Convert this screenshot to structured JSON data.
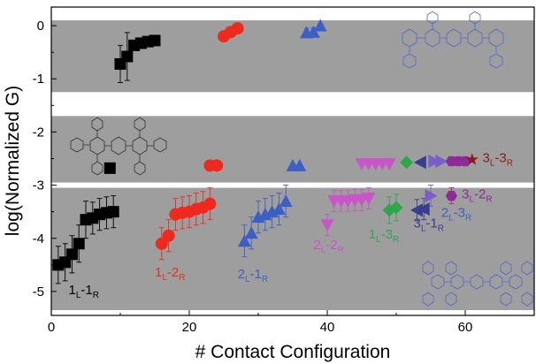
{
  "chart_data": {
    "type": "scatter",
    "xlabel": "# Contact Configuration",
    "ylabel": "log(Normalized G)",
    "xlim": [
      0,
      70
    ],
    "ylim": [
      -5.45,
      0.35
    ],
    "xticks": [
      "0",
      "20",
      "40",
      "60"
    ],
    "xtick_values": [
      0,
      20,
      40,
      60
    ],
    "yticks": [
      "0",
      "-1",
      "-2",
      "-3",
      "-4",
      "-5"
    ],
    "ytick_values": [
      0,
      -1,
      -2,
      -3,
      -4,
      -5
    ],
    "grid": false,
    "bands": [
      {
        "from": -1.25,
        "to": 0.1,
        "color": "#9e9e9e"
      },
      {
        "from": -2.95,
        "to": -1.7,
        "color": "#9e9e9e"
      },
      {
        "from": -5.35,
        "to": -3.05,
        "color": "#9e9e9e"
      }
    ],
    "series": [
      {
        "group": "1L-1R",
        "marker": "square",
        "color": "#000000",
        "points": [
          [
            1,
            -4.5
          ],
          [
            2,
            -4.45
          ],
          [
            3,
            -4.3
          ],
          [
            4,
            -4.1
          ],
          [
            5,
            -3.65
          ],
          [
            6,
            -3.62
          ],
          [
            7,
            -3.55
          ],
          [
            8,
            -3.52
          ],
          [
            9,
            -3.5
          ]
        ],
        "err": [
          0.35,
          0.35,
          0.35,
          0.35,
          0.35,
          0.3,
          0.3,
          0.3,
          0.3
        ]
      },
      {
        "group": "1L-2R",
        "marker": "circle",
        "color": "#ee2a1e",
        "points": [
          [
            16,
            -4.1
          ],
          [
            17,
            -3.95
          ],
          [
            18,
            -3.55
          ],
          [
            19,
            -3.52
          ],
          [
            20,
            -3.5
          ],
          [
            21,
            -3.45
          ],
          [
            22,
            -3.42
          ],
          [
            23,
            -3.35
          ]
        ],
        "err": [
          0.3,
          0.3,
          0.3,
          0.3,
          0.3,
          0.3,
          0.3,
          0.3
        ]
      },
      {
        "group": "2L-1R",
        "marker": "triangle-up",
        "color": "#3d5fc4",
        "points": [
          [
            28,
            -4.05
          ],
          [
            29,
            -3.9
          ],
          [
            30,
            -3.6
          ],
          [
            31,
            -3.55
          ],
          [
            32,
            -3.5
          ],
          [
            33,
            -3.45
          ],
          [
            34,
            -3.3
          ]
        ],
        "err": [
          0.3,
          0.3,
          0.3,
          0.3,
          0.3,
          0.3,
          0.3
        ]
      },
      {
        "group": "2L-2R",
        "marker": "triangle-down",
        "color": "#c856c8",
        "points": [
          [
            40,
            -3.75
          ],
          [
            41,
            -3.3
          ],
          [
            42,
            -3.3
          ],
          [
            43,
            -3.3
          ],
          [
            44,
            -3.28
          ],
          [
            45,
            -3.28
          ],
          [
            46,
            -3.25
          ]
        ],
        "err": [
          0.2,
          0.2,
          0.2,
          0.2,
          0.2,
          0.2,
          0.2
        ]
      },
      {
        "group": "1L-3R",
        "marker": "diamond",
        "color": "#2aa84a",
        "points": [
          [
            49,
            -3.47
          ],
          [
            50,
            -3.42
          ]
        ],
        "err": [
          0.25,
          0.25
        ]
      },
      {
        "group": "3L-1R",
        "marker": "triangle-left",
        "color": "#3a3d8f",
        "points": [
          [
            53,
            -3.47
          ],
          [
            54,
            -3.45
          ]
        ],
        "err": [
          0.2,
          0.2
        ]
      },
      {
        "group": "2L-3R",
        "marker": "triangle-right",
        "color": "#7a5dc8",
        "points": [
          [
            55,
            -3.2
          ]
        ],
        "err": [
          0.2
        ]
      },
      {
        "group": "3L-2R",
        "marker": "hexagon",
        "color": "#8e2a96",
        "points": [
          [
            58,
            -3.2
          ]
        ],
        "err": [
          0.15
        ]
      },
      {
        "group": "3L-3R",
        "marker": "star",
        "color": "#8b1a1a",
        "points": []
      }
    ],
    "top_band_points": [
      {
        "marker": "square",
        "color": "#000000",
        "points": [
          [
            10,
            -0.72
          ],
          [
            11,
            -0.58
          ],
          [
            12,
            -0.37
          ],
          [
            13,
            -0.33
          ],
          [
            14,
            -0.3
          ],
          [
            15,
            -0.28
          ]
        ],
        "err": [
          0.35,
          0.45,
          0.05,
          0.05,
          0.05,
          0.05
        ]
      },
      {
        "marker": "circle",
        "color": "#ee2a1e",
        "points": [
          [
            25,
            -0.2
          ],
          [
            26,
            -0.12
          ],
          [
            27,
            -0.05
          ]
        ],
        "err": [
          0.08,
          0.08,
          0.05
        ]
      },
      {
        "marker": "triangle-up",
        "color": "#3d5fc4",
        "points": [
          [
            37,
            -0.13
          ],
          [
            38,
            -0.12
          ],
          [
            39,
            0.0
          ]
        ],
        "err": [
          0.08,
          0.08,
          0.03
        ]
      }
    ],
    "middle_band_points": [
      {
        "marker": "square",
        "color": "#000000",
        "points": [
          [
            8.5,
            -2.68
          ]
        ]
      },
      {
        "marker": "circle",
        "color": "#ee2a1e",
        "points": [
          [
            23,
            -2.63
          ],
          [
            24,
            -2.63
          ]
        ]
      },
      {
        "marker": "triangle-up",
        "color": "#3d5fc4",
        "points": [
          [
            35,
            -2.63
          ],
          [
            36,
            -2.63
          ]
        ]
      },
      {
        "marker": "triangle-down",
        "color": "#c856c8",
        "points": [
          [
            45,
            -2.6
          ],
          [
            46,
            -2.6
          ],
          [
            47,
            -2.6
          ],
          [
            48,
            -2.6
          ],
          [
            49,
            -2.6
          ]
        ]
      },
      {
        "marker": "diamond",
        "color": "#2aa84a",
        "points": [
          [
            51.5,
            -2.57
          ]
        ]
      },
      {
        "marker": "triangle-left",
        "color": "#3a3d8f",
        "points": [
          [
            53.5,
            -2.57
          ]
        ]
      },
      {
        "marker": "triangle-right",
        "color": "#7a5dc8",
        "points": [
          [
            55.5,
            -2.55
          ],
          [
            56.5,
            -2.55
          ]
        ]
      },
      {
        "marker": "hexagon",
        "color": "#8e2a96",
        "points": [
          [
            58,
            -2.55
          ],
          [
            59,
            -2.55
          ],
          [
            60,
            -2.55
          ]
        ]
      },
      {
        "marker": "star",
        "color": "#8b1a1a",
        "points": [
          [
            61,
            -2.52
          ]
        ]
      }
    ],
    "labels": [
      {
        "main": "1",
        "s1": "L",
        "mid": "-1",
        "s2": "R",
        "x": 2.5,
        "y": -5.05,
        "color": "#000000"
      },
      {
        "main": "1",
        "s1": "L",
        "mid": "-2",
        "s2": "R",
        "x": 15,
        "y": -4.72,
        "color": "#ee2a1e"
      },
      {
        "main": "2",
        "s1": "L",
        "mid": "-1",
        "s2": "R",
        "x": 27,
        "y": -4.75,
        "color": "#3d5fc4"
      },
      {
        "main": "2",
        "s1": "L",
        "mid": "-2",
        "s2": "R",
        "x": 38,
        "y": -4.2,
        "color": "#c856c8"
      },
      {
        "main": "1",
        "s1": "L",
        "mid": "-3",
        "s2": "R",
        "x": 46,
        "y": -4.0,
        "color": "#2aa84a"
      },
      {
        "main": "3",
        "s1": "L",
        "mid": "-1",
        "s2": "R",
        "x": 52.5,
        "y": -3.8,
        "color": "#3a3d8f"
      },
      {
        "main": "2",
        "s1": "L",
        "mid": "-3",
        "s2": "R",
        "x": 56.5,
        "y": -3.6,
        "color": "#3d5fc4"
      },
      {
        "main": "3",
        "s1": "L",
        "mid": "-2",
        "s2": "R",
        "x": 59.5,
        "y": -3.25,
        "color": "#8e2a96"
      },
      {
        "main": "3",
        "s1": "L",
        "mid": "-3",
        "s2": "R",
        "x": 62.5,
        "y": -2.57,
        "color": "#8b1a1a"
      }
    ]
  }
}
